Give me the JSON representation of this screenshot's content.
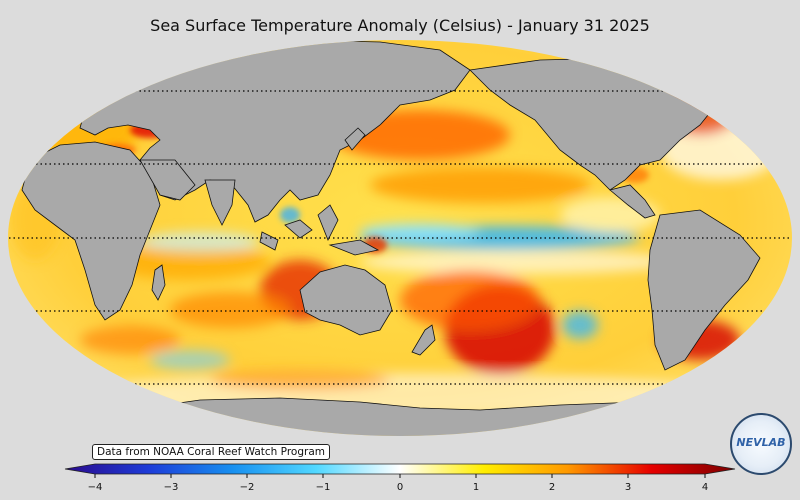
{
  "title": "Sea Surface Temperature Anomaly (Celsius) - January 31 2025",
  "attribution": "Data from NOAA Coral Reef Watch Program",
  "colorbar": {
    "ticks": [
      "−4",
      "−3",
      "−2",
      "−1",
      "0",
      "1",
      "2",
      "3",
      "4"
    ],
    "min": -4,
    "max": 4,
    "colors": [
      "#2a0a8c",
      "#1e3cd8",
      "#1890f0",
      "#52d8ff",
      "#ffffff",
      "#ffee00",
      "#ff9900",
      "#e60000",
      "#7a0000"
    ]
  },
  "logo": {
    "text": "NEVLAB",
    "icon": "nevlab-globe-logo"
  },
  "colors": {
    "land": "#a9a9a9",
    "ocean_base": "#ffd24a",
    "background": "#dcdcdc"
  }
}
